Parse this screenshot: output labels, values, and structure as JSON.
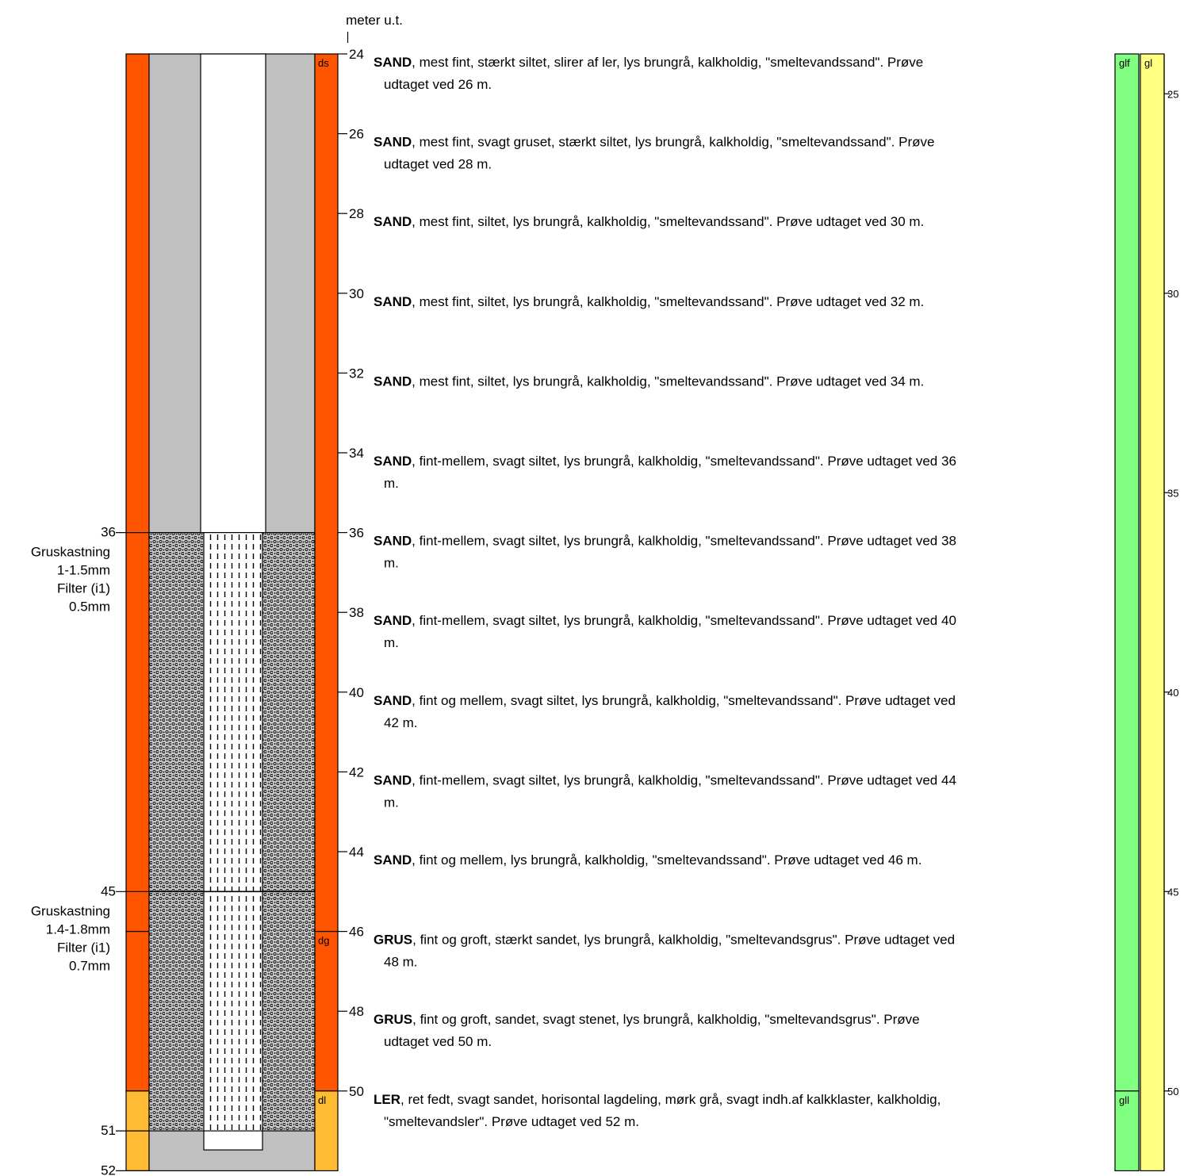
{
  "depth_axis": {
    "label": "meter u.t.",
    "ticks": [
      "24",
      "26",
      "28",
      "30",
      "32",
      "34",
      "36",
      "38",
      "40",
      "42",
      "44",
      "46",
      "48",
      "50"
    ]
  },
  "left_axis": {
    "marks": [
      {
        "label": "36",
        "depth": 36
      },
      {
        "label": "45",
        "depth": 45
      },
      {
        "label": "51",
        "depth": 51
      },
      {
        "label": "52",
        "depth": 52
      }
    ],
    "filter_notes": [
      {
        "depth_top": 36,
        "lines": [
          "Gruskastning",
          "1-1.5mm",
          "Filter (i1)",
          "0.5mm"
        ]
      },
      {
        "depth_top": 45,
        "lines": [
          "Gruskastning",
          "1.4-1.8mm",
          "Filter (i1)",
          "0.7mm"
        ]
      }
    ]
  },
  "lithology_units": [
    {
      "code": "ds",
      "top": 24,
      "bottom": 46,
      "color": "#ff5500"
    },
    {
      "code": "dg",
      "top": 46,
      "bottom": 50,
      "color": "#ff5500"
    },
    {
      "code": "dl",
      "top": 50,
      "bottom": 52,
      "color": "#ffbb33"
    }
  ],
  "descriptions": [
    {
      "depth": 24,
      "bold": "SAND",
      "lines": [
        ", mest fint, stærkt siltet, slirer af ler, lys brungrå, kalkholdig, \"smeltevandssand\". Prøve",
        "udtaget ved 26 m."
      ]
    },
    {
      "depth": 26,
      "bold": "SAND",
      "lines": [
        ", mest fint, svagt gruset, stærkt siltet, lys brungrå, kalkholdig, \"smeltevandssand\". Prøve",
        "udtaget ved 28 m."
      ]
    },
    {
      "depth": 28,
      "bold": "SAND",
      "lines": [
        ", mest fint, siltet, lys brungrå, kalkholdig, \"smeltevandssand\". Prøve udtaget ved 30 m."
      ]
    },
    {
      "depth": 30,
      "bold": "SAND",
      "lines": [
        ", mest fint, siltet, lys brungrå, kalkholdig, \"smeltevandssand\". Prøve udtaget ved 32 m."
      ]
    },
    {
      "depth": 32,
      "bold": "SAND",
      "lines": [
        ", mest fint, siltet, lys brungrå, kalkholdig, \"smeltevandssand\". Prøve udtaget ved 34 m."
      ]
    },
    {
      "depth": 34,
      "bold": "SAND",
      "lines": [
        ", fint-mellem, svagt siltet, lys brungrå, kalkholdig, \"smeltevandssand\". Prøve udtaget ved 36",
        "m."
      ]
    },
    {
      "depth": 36,
      "bold": "SAND",
      "lines": [
        ", fint-mellem, svagt siltet, lys brungrå, kalkholdig, \"smeltevandssand\". Prøve udtaget ved 38",
        "m."
      ]
    },
    {
      "depth": 38,
      "bold": "SAND",
      "lines": [
        ", fint-mellem, svagt siltet, lys brungrå, kalkholdig, \"smeltevandssand\". Prøve udtaget ved 40",
        "m."
      ]
    },
    {
      "depth": 40,
      "bold": "SAND",
      "lines": [
        ", fint og mellem, svagt siltet, lys brungrå, kalkholdig, \"smeltevandssand\". Prøve udtaget ved",
        "42 m."
      ]
    },
    {
      "depth": 42,
      "bold": "SAND",
      "lines": [
        ", fint-mellem, svagt siltet, lys brungrå, kalkholdig, \"smeltevandssand\". Prøve udtaget ved 44",
        "m."
      ]
    },
    {
      "depth": 44,
      "bold": "SAND",
      "lines": [
        ", fint og mellem, lys brungrå, kalkholdig, \"smeltevandssand\". Prøve udtaget ved 46 m."
      ]
    },
    {
      "depth": 46,
      "bold": "GRUS",
      "lines": [
        ", fint og groft, stærkt sandet, lys brungrå, kalkholdig, \"smeltevandsgrus\". Prøve udtaget ved",
        "48 m."
      ]
    },
    {
      "depth": 48,
      "bold": "GRUS",
      "lines": [
        ", fint og groft, sandet, svagt stenet, lys brungrå, kalkholdig, \"smeltevandsgrus\". Prøve",
        "udtaget ved 50 m."
      ]
    },
    {
      "depth": 50,
      "bold": "LER",
      "lines": [
        ", ret fedt, svagt sandet, horisontal lagdeling, mørk grå, svagt indh.af kalkklaster, kalkholdig,",
        "\"smeltevandsler\". Prøve udtaget ved 52 m."
      ]
    }
  ],
  "genesis_columns": [
    {
      "units": [
        {
          "code": "glf",
          "top": 24,
          "bottom": 50,
          "color": "#80ff80"
        },
        {
          "code": "gll",
          "top": 50,
          "bottom": 52,
          "color": "#80ff80"
        }
      ]
    },
    {
      "units": [
        {
          "code": "gl",
          "top": 24,
          "bottom": 52,
          "color": "#ffff80"
        }
      ]
    }
  ],
  "right_axis": {
    "ticks": [
      "25",
      "30",
      "35",
      "40",
      "45",
      "50"
    ]
  },
  "colors": {
    "casing_gray": "#c0c0c0",
    "filter_gravel": "#c0c0c0",
    "outline": "#000000"
  }
}
